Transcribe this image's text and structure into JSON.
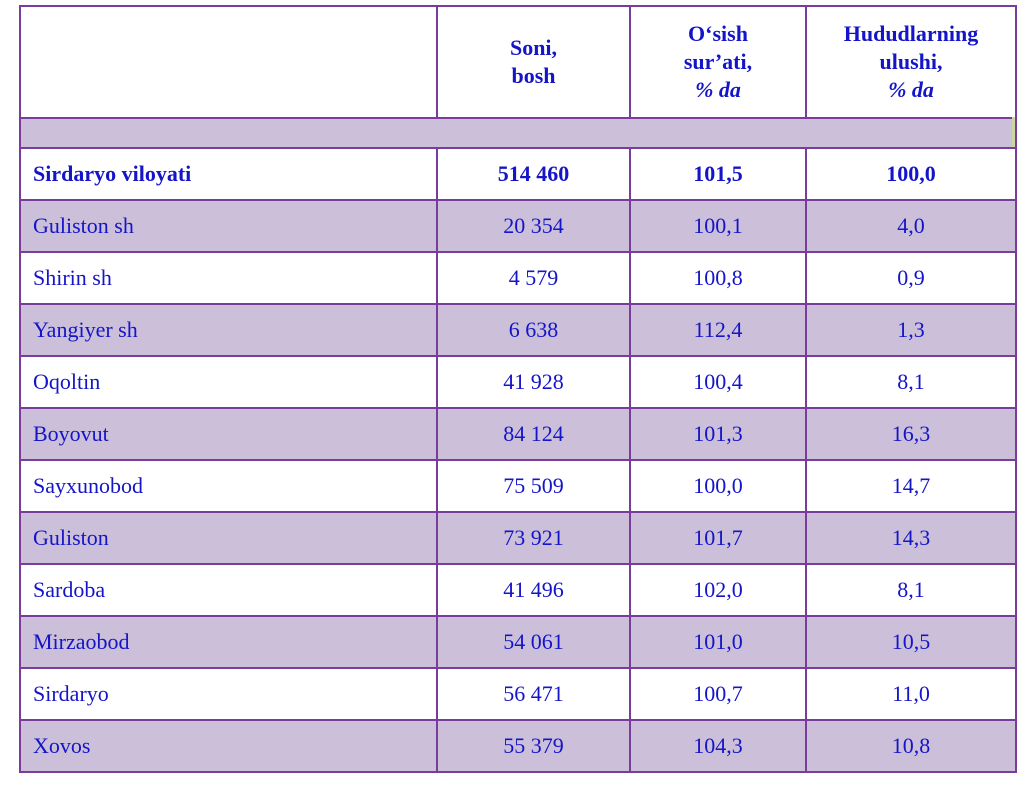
{
  "header": {
    "col1": "",
    "col2": [
      "Soni,",
      "bosh"
    ],
    "col3": [
      "O‘sish",
      "sur’ati,",
      "% da"
    ],
    "col4": [
      "Hududlarning",
      "ulushi,",
      "% da"
    ]
  },
  "rows": [
    {
      "name": "Sirdaryo viloyati",
      "soni": "514 460",
      "osish": "101,5",
      "ulush": "100,0"
    },
    {
      "name": "Guliston sh",
      "soni": "20 354",
      "osish": "100,1",
      "ulush": "4,0"
    },
    {
      "name": "Shirin sh",
      "soni": "4 579",
      "osish": "100,8",
      "ulush": "0,9"
    },
    {
      "name": "Yangiyer sh",
      "soni": "6 638",
      "osish": "112,4",
      "ulush": "1,3"
    },
    {
      "name": "Oqoltin",
      "soni": "41 928",
      "osish": "100,4",
      "ulush": "8,1"
    },
    {
      "name": "Boyovut",
      "soni": "84 124",
      "osish": "101,3",
      "ulush": "16,3"
    },
    {
      "name": "Sayxunobod",
      "soni": "75 509",
      "osish": "100,0",
      "ulush": "14,7"
    },
    {
      "name": "Guliston",
      "soni": "73 921",
      "osish": "101,7",
      "ulush": "14,3"
    },
    {
      "name": "Sardoba",
      "soni": "41 496",
      "osish": "102,0",
      "ulush": "8,1"
    },
    {
      "name": "Mirzaobod",
      "soni": "54 061",
      "osish": "101,0",
      "ulush": "10,5"
    },
    {
      "name": "Sirdaryo",
      "soni": "56 471",
      "osish": "100,7",
      "ulush": "11,0"
    },
    {
      "name": "Xovos",
      "soni": "55 379",
      "osish": "104,3",
      "ulush": "10,8"
    }
  ],
  "colors": {
    "text": "#1414c8",
    "border": "#7a3c9a",
    "shade": "#cbbfd9"
  }
}
